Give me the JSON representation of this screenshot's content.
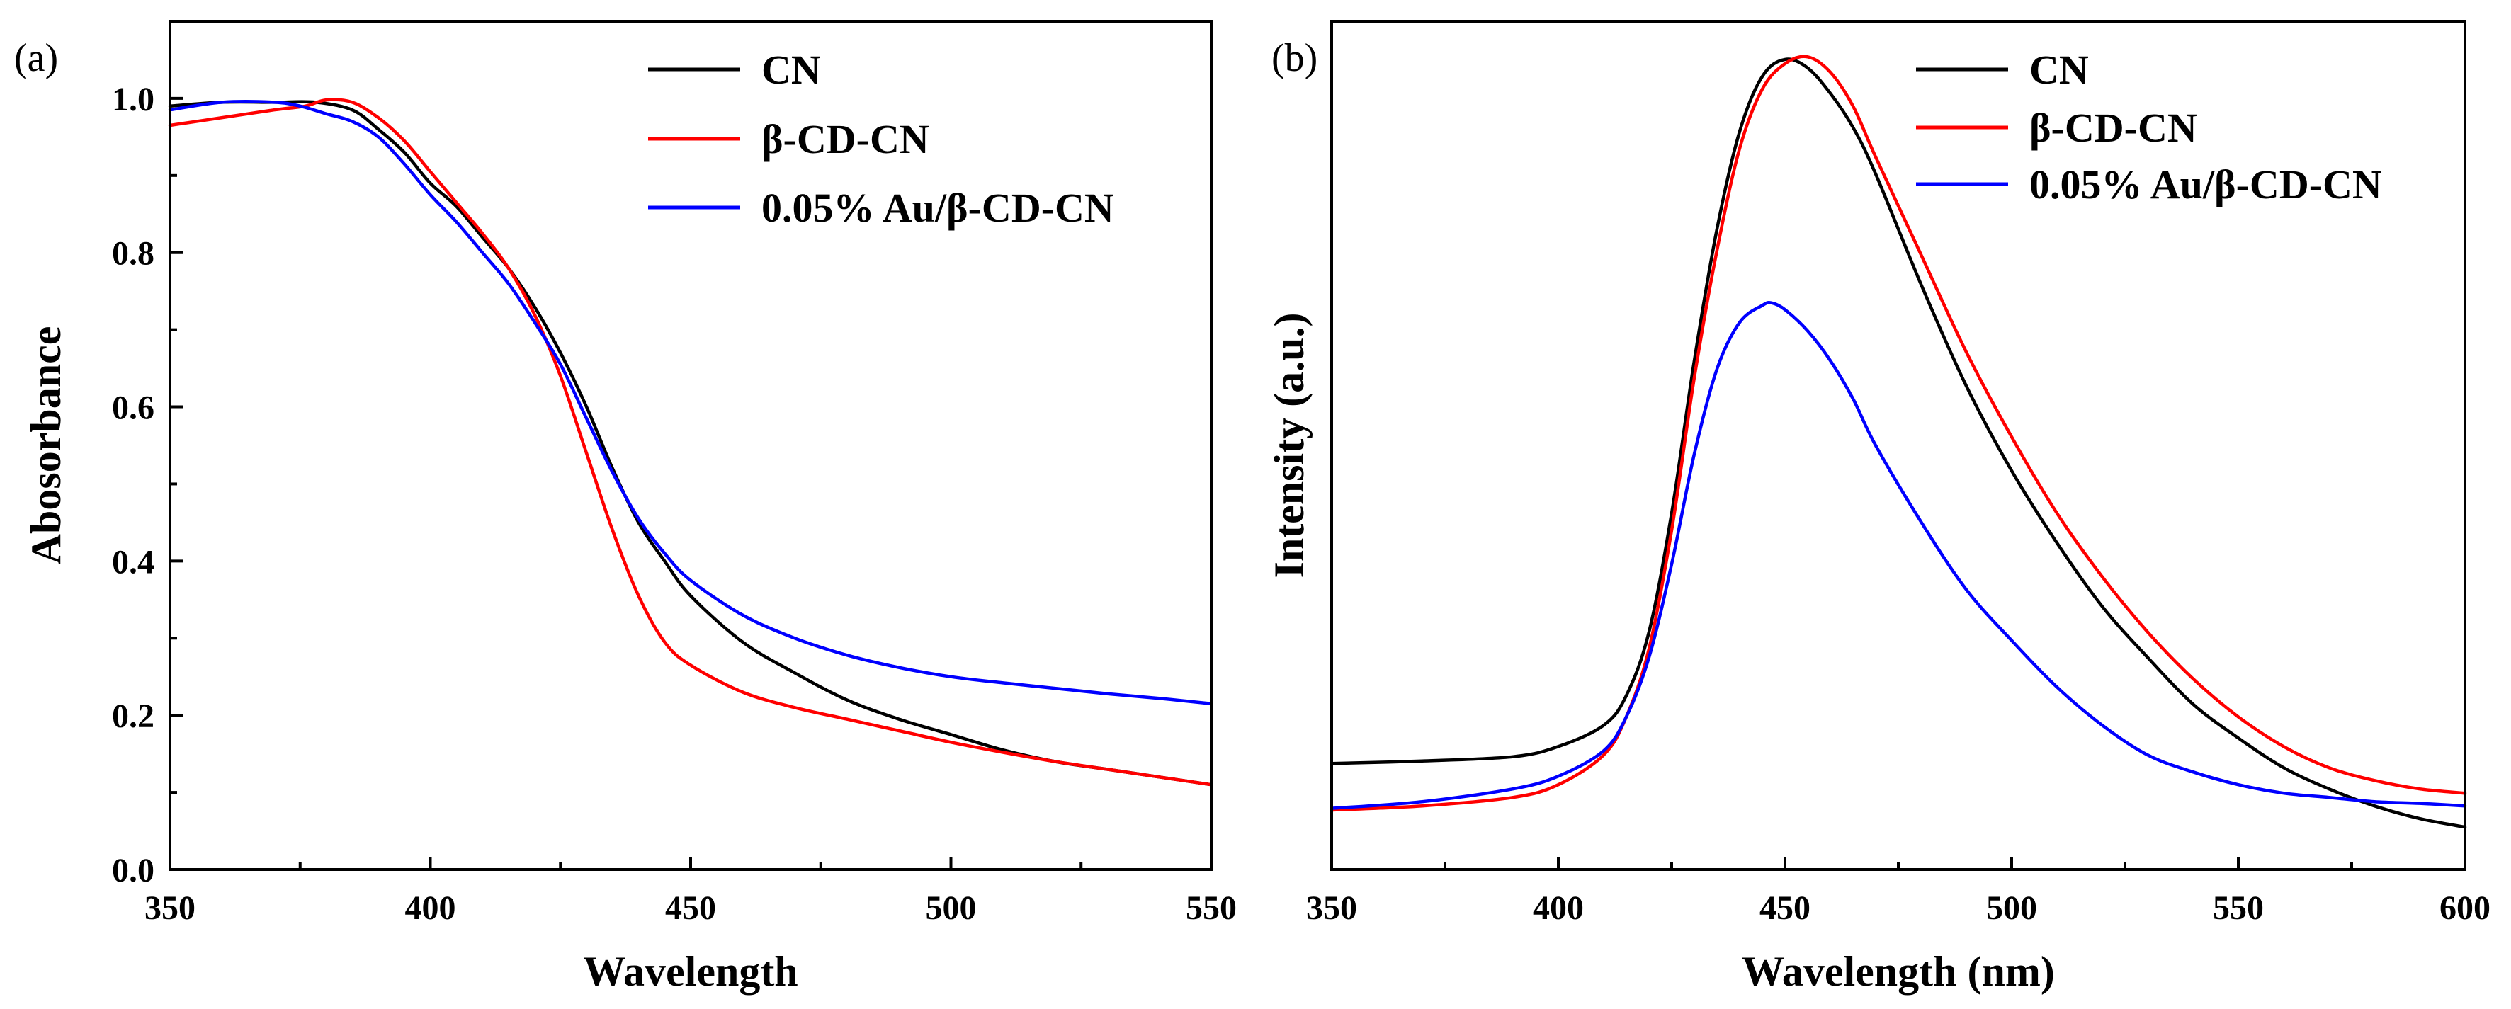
{
  "chart_data": [
    {
      "type": "line",
      "panel_label": "(a)",
      "title": "",
      "xlabel": "Wavelength",
      "ylabel": "Abosorbance",
      "xlim": [
        350,
        550
      ],
      "ylim": [
        0.0,
        1.1
      ],
      "xticks": [
        350,
        400,
        450,
        500,
        550
      ],
      "xtick_labels": [
        "350",
        "400",
        "450",
        "500",
        "550"
      ],
      "yticks": [
        0.0,
        0.2,
        0.4,
        0.6,
        0.8,
        1.0
      ],
      "ytick_labels": [
        "0.0",
        "0.2",
        "0.4",
        "0.6",
        "0.8",
        "1.0"
      ],
      "legend_position": "top-right",
      "series": [
        {
          "name": "CN",
          "color": "#000000",
          "x": [
            350,
            360,
            370,
            378,
            385,
            390,
            395,
            400,
            405,
            410,
            415,
            420,
            425,
            430,
            435,
            440,
            445,
            450,
            460,
            470,
            480,
            490,
            500,
            510,
            520,
            530,
            540,
            550
          ],
          "y": [
            0.99,
            0.995,
            0.995,
            0.995,
            0.985,
            0.96,
            0.93,
            0.89,
            0.86,
            0.82,
            0.78,
            0.73,
            0.67,
            0.6,
            0.52,
            0.45,
            0.4,
            0.355,
            0.295,
            0.255,
            0.22,
            0.195,
            0.175,
            0.155,
            0.14,
            0.13,
            0.12,
            0.11
          ]
        },
        {
          "name": "β-CD-CN",
          "color": "#ff0000",
          "x": [
            350,
            360,
            370,
            376,
            380,
            385,
            390,
            395,
            400,
            405,
            410,
            415,
            420,
            425,
            430,
            435,
            440,
            445,
            450,
            460,
            470,
            480,
            490,
            500,
            510,
            520,
            530,
            540,
            550
          ],
          "y": [
            0.965,
            0.975,
            0.985,
            0.99,
            0.998,
            0.995,
            0.975,
            0.945,
            0.905,
            0.865,
            0.825,
            0.78,
            0.72,
            0.64,
            0.54,
            0.44,
            0.355,
            0.295,
            0.265,
            0.23,
            0.21,
            0.195,
            0.18,
            0.165,
            0.152,
            0.14,
            0.13,
            0.12,
            0.11
          ]
        },
        {
          "name": "0.05% Au/β-CD-CN",
          "color": "#0000ff",
          "x": [
            350,
            360,
            370,
            375,
            380,
            385,
            390,
            395,
            400,
            405,
            410,
            415,
            420,
            425,
            430,
            435,
            440,
            445,
            450,
            460,
            470,
            480,
            490,
            500,
            510,
            520,
            530,
            540,
            550
          ],
          "y": [
            0.985,
            0.995,
            0.995,
            0.99,
            0.98,
            0.97,
            0.95,
            0.915,
            0.875,
            0.84,
            0.8,
            0.76,
            0.71,
            0.655,
            0.585,
            0.515,
            0.455,
            0.41,
            0.375,
            0.33,
            0.3,
            0.278,
            0.262,
            0.25,
            0.242,
            0.235,
            0.228,
            0.222,
            0.215
          ]
        }
      ]
    },
    {
      "type": "line",
      "panel_label": "(b)",
      "title": "",
      "xlabel": "Wavelength (nm)",
      "ylabel": "Intensity (a.u.)",
      "xlim": [
        350,
        600
      ],
      "ylim": [
        0,
        100
      ],
      "xticks": [
        350,
        400,
        450,
        500,
        550,
        600
      ],
      "xtick_labels": [
        "350",
        "400",
        "450",
        "500",
        "550",
        "600"
      ],
      "yticks": [],
      "ytick_labels": [],
      "legend_position": "top-right",
      "series": [
        {
          "name": "CN",
          "color": "#000000",
          "x": [
            350,
            370,
            390,
            400,
            410,
            415,
            420,
            425,
            430,
            435,
            440,
            445,
            450,
            455,
            460,
            465,
            470,
            480,
            490,
            500,
            510,
            520,
            530,
            540,
            550,
            560,
            570,
            580,
            590,
            600
          ],
          "y": [
            12.5,
            12.8,
            13.3,
            14.5,
            17.0,
            20.5,
            28.0,
            42.0,
            60.0,
            75.5,
            87.0,
            93.5,
            95.5,
            94.5,
            91.5,
            87.5,
            82.0,
            69.0,
            57.0,
            47.0,
            38.5,
            31.0,
            25.0,
            19.5,
            15.5,
            12.0,
            9.5,
            7.5,
            6.0,
            5.0
          ]
        },
        {
          "name": "β-CD-CN",
          "color": "#ff0000",
          "x": [
            350,
            370,
            390,
            400,
            410,
            415,
            420,
            425,
            430,
            435,
            440,
            445,
            450,
            455,
            460,
            465,
            470,
            480,
            490,
            500,
            510,
            520,
            530,
            540,
            550,
            560,
            570,
            580,
            590,
            600
          ],
          "y": [
            7.0,
            7.5,
            8.5,
            10.0,
            13.5,
            18.0,
            26.0,
            40.0,
            58.0,
            73.0,
            85.0,
            92.0,
            95.0,
            95.8,
            94.0,
            90.0,
            84.0,
            72.5,
            61.0,
            51.0,
            42.0,
            34.5,
            28.0,
            22.5,
            18.0,
            14.5,
            12.0,
            10.5,
            9.5,
            9.0
          ]
        },
        {
          "name": "0.05% Au/β-CD-CN",
          "color": "#0000ff",
          "x": [
            350,
            370,
            390,
            400,
            410,
            415,
            420,
            425,
            430,
            435,
            440,
            445,
            447,
            450,
            455,
            460,
            465,
            470,
            480,
            490,
            500,
            510,
            520,
            530,
            540,
            550,
            560,
            570,
            580,
            590,
            600
          ],
          "y": [
            7.2,
            8.0,
            9.5,
            11.0,
            14.0,
            18.0,
            25.0,
            36.0,
            49.0,
            59.0,
            64.5,
            66.5,
            66.8,
            66.0,
            63.5,
            60.0,
            55.5,
            50.0,
            41.0,
            33.0,
            27.0,
            21.5,
            17.0,
            13.5,
            11.5,
            10.0,
            9.0,
            8.5,
            8.0,
            7.8,
            7.5
          ]
        }
      ]
    }
  ]
}
